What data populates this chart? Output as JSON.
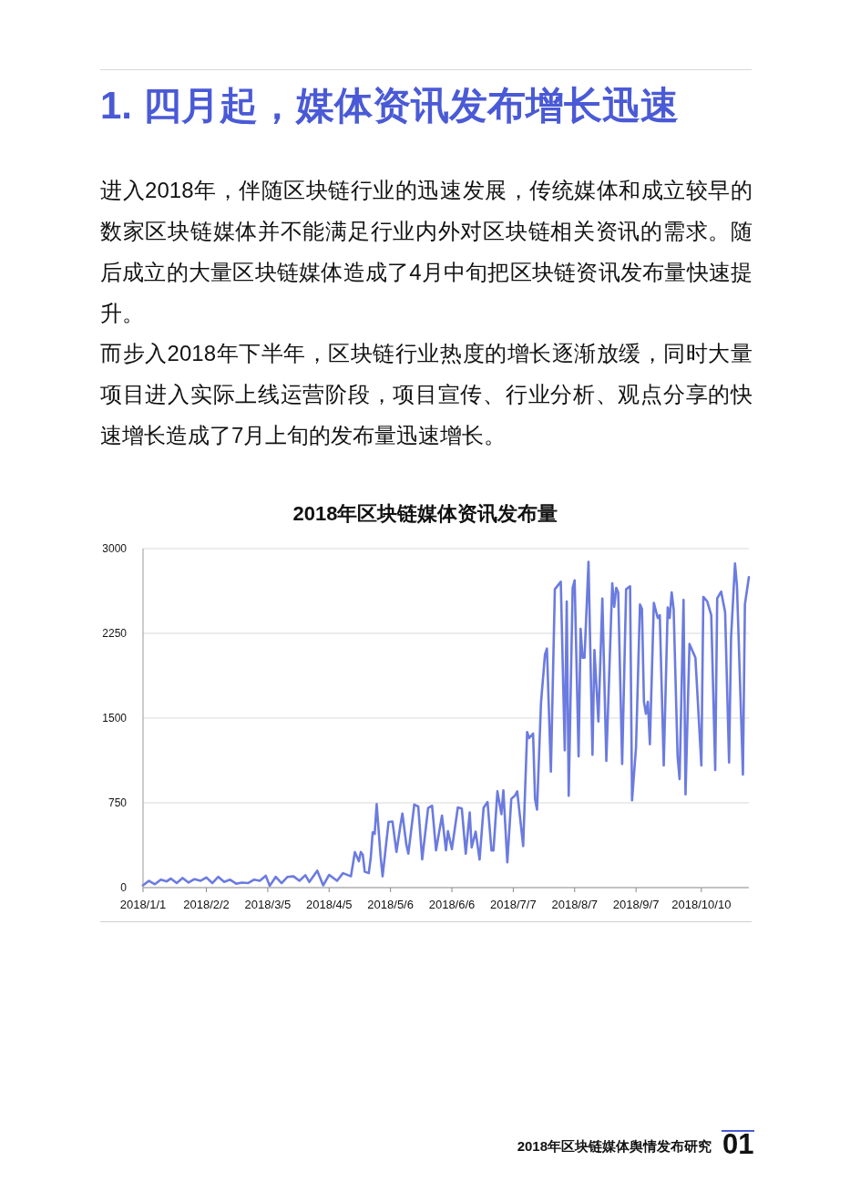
{
  "chart_data": {
    "type": "line",
    "title": "2018年区块链媒体资讯发布量",
    "annotations": [
      "1. 四月起，媒体资讯发布增长迅速",
      "进入2018年，伴随区块链行业的迅速发展，传统媒体和成立较早的数家区块链媒体并不能满足行业内外对区块链相关资讯的需求。随后成立的大量区块链媒体造成了4月中旬把区块链资讯发布量快速提升。",
      "而步入2018年下半年，区块链行业热度的增长逐渐放缓，同时大量项目进入实际上线运营阶段，项目宣传、行业分析、观点分享的快速增长造成了7月上旬的发布量迅速增长。",
      "2018年区块链媒体舆情发布研究",
      "01"
    ],
    "x": [
      "2018-01-01",
      "2018-01-04",
      "2018-01-07",
      "2018-01-10",
      "2018-01-13",
      "2018-01-15",
      "2018-01-18",
      "2018-01-21",
      "2018-01-24",
      "2018-01-27",
      "2018-01-30",
      "2018-02-02",
      "2018-02-05",
      "2018-02-08",
      "2018-02-11",
      "2018-02-14",
      "2018-02-17",
      "2018-02-20",
      "2018-02-23",
      "2018-02-26",
      "2018-03-01",
      "2018-03-04",
      "2018-03-06",
      "2018-03-09",
      "2018-03-12",
      "2018-03-15",
      "2018-03-18",
      "2018-03-21",
      "2018-03-24",
      "2018-03-26",
      "2018-03-30",
      "2018-04-02",
      "2018-04-05",
      "2018-04-09",
      "2018-04-12",
      "2018-04-16",
      "2018-04-18",
      "2018-04-20",
      "2018-04-21",
      "2018-04-22",
      "2018-04-23",
      "2018-04-25",
      "2018-04-26",
      "2018-04-27",
      "2018-04-28",
      "2018-04-29",
      "2018-05-01",
      "2018-05-02",
      "2018-05-05",
      "2018-05-07",
      "2018-05-09",
      "2018-05-11",
      "2018-05-12",
      "2018-05-14",
      "2018-05-15",
      "2018-05-18",
      "2018-05-20",
      "2018-05-22",
      "2018-05-25",
      "2018-05-27",
      "2018-05-29",
      "2018-06-01",
      "2018-06-03",
      "2018-06-04",
      "2018-06-06",
      "2018-06-09",
      "2018-06-11",
      "2018-06-13",
      "2018-06-15",
      "2018-06-16",
      "2018-06-18",
      "2018-06-20",
      "2018-06-22",
      "2018-06-24",
      "2018-06-26",
      "2018-06-27",
      "2018-06-29",
      "2018-07-01",
      "2018-07-02",
      "2018-07-04",
      "2018-07-06",
      "2018-07-08",
      "2018-07-09",
      "2018-07-12",
      "2018-07-14",
      "2018-07-15",
      "2018-07-17",
      "2018-07-18",
      "2018-07-19",
      "2018-07-21",
      "2018-07-23",
      "2018-07-24",
      "2018-07-26",
      "2018-07-28",
      "2018-07-31",
      "2018-08-02",
      "2018-08-03",
      "2018-08-04",
      "2018-08-06",
      "2018-08-07",
      "2018-08-09",
      "2018-08-10",
      "2018-08-11",
      "2018-08-12",
      "2018-08-14",
      "2018-08-16",
      "2018-08-17",
      "2018-08-19",
      "2018-08-21",
      "2018-08-23",
      "2018-08-26",
      "2018-08-27",
      "2018-08-28",
      "2018-08-29",
      "2018-08-31",
      "2018-09-02",
      "2018-09-04",
      "2018-09-05",
      "2018-09-07",
      "2018-09-09",
      "2018-09-10",
      "2018-09-11",
      "2018-09-12",
      "2018-09-13",
      "2018-09-14",
      "2018-09-16",
      "2018-09-18",
      "2018-09-19",
      "2018-09-21",
      "2018-09-23",
      "2018-09-24",
      "2018-09-25",
      "2018-09-26",
      "2018-09-28",
      "2018-09-29",
      "2018-10-01",
      "2018-10-02",
      "2018-10-04",
      "2018-10-07",
      "2018-10-10",
      "2018-10-11",
      "2018-10-13",
      "2018-10-15",
      "2018-10-17",
      "2018-10-18",
      "2018-10-20",
      "2018-10-22",
      "2018-10-24",
      "2018-10-25",
      "2018-10-27",
      "2018-10-28",
      "2018-10-31",
      "2018-11-01",
      "2018-11-03"
    ],
    "series": [
      {
        "color": "#6b7be0",
        "values": [
          20,
          60,
          30,
          70,
          55,
          80,
          40,
          85,
          45,
          75,
          60,
          90,
          40,
          95,
          50,
          70,
          35,
          45,
          40,
          70,
          60,
          105,
          15,
          95,
          40,
          95,
          100,
          60,
          110,
          50,
          150,
          20,
          113,
          60,
          128,
          100,
          315,
          233,
          315,
          290,
          140,
          128,
          260,
          490,
          475,
          740,
          275,
          100,
          580,
          585,
          315,
          550,
          655,
          380,
          300,
          735,
          718,
          250,
          705,
          725,
          330,
          637,
          330,
          500,
          340,
          710,
          700,
          300,
          665,
          355,
          495,
          248,
          705,
          758,
          330,
          330,
          852,
          650,
          860,
          225,
          785,
          817,
          852,
          368,
          1377,
          1323,
          1363,
          785,
          690,
          1632,
          2062,
          2116,
          1027,
          2640,
          2707,
          1215,
          2532,
          812,
          2653,
          2720,
          1161,
          2290,
          2035,
          2035,
          2882,
          1175,
          2102,
          1470,
          2559,
          1121,
          2694,
          2484,
          2653,
          2613,
          1094,
          2640,
          2667,
          772,
          1242,
          2506,
          2465,
          1645,
          1538,
          1645,
          1269,
          2519,
          2385,
          2411,
          1081,
          2479,
          2385,
          2613,
          2465,
          1161,
          960,
          2546,
          825,
          2156,
          2035,
          1081,
          2573,
          2532,
          2411,
          1040,
          2559,
          2619,
          2438,
          1107,
          2210,
          2869,
          2667,
          1000,
          2506,
          2748
        ]
      }
    ],
    "xlim": [
      "2018-01-01",
      "2018-11-03"
    ],
    "xticks": [
      {
        "value": "2018-01-01",
        "label": "2018/1/1"
      },
      {
        "value": "2018-02-02",
        "label": "2018/2/2"
      },
      {
        "value": "2018-03-05",
        "label": "2018/3/5"
      },
      {
        "value": "2018-04-05",
        "label": "2018/4/5"
      },
      {
        "value": "2018-05-06",
        "label": "2018/5/6"
      },
      {
        "value": "2018-06-06",
        "label": "2018/6/6"
      },
      {
        "value": "2018-07-07",
        "label": "2018/7/7"
      },
      {
        "value": "2018-08-07",
        "label": "2018/8/7"
      },
      {
        "value": "2018-09-07",
        "label": "2018/9/7"
      },
      {
        "value": "2018-10-10",
        "label": "2018/10/10"
      }
    ],
    "ylim": [
      0,
      3000
    ],
    "yticks": [
      0,
      750,
      1500,
      2250,
      3000
    ],
    "grid": "y"
  }
}
